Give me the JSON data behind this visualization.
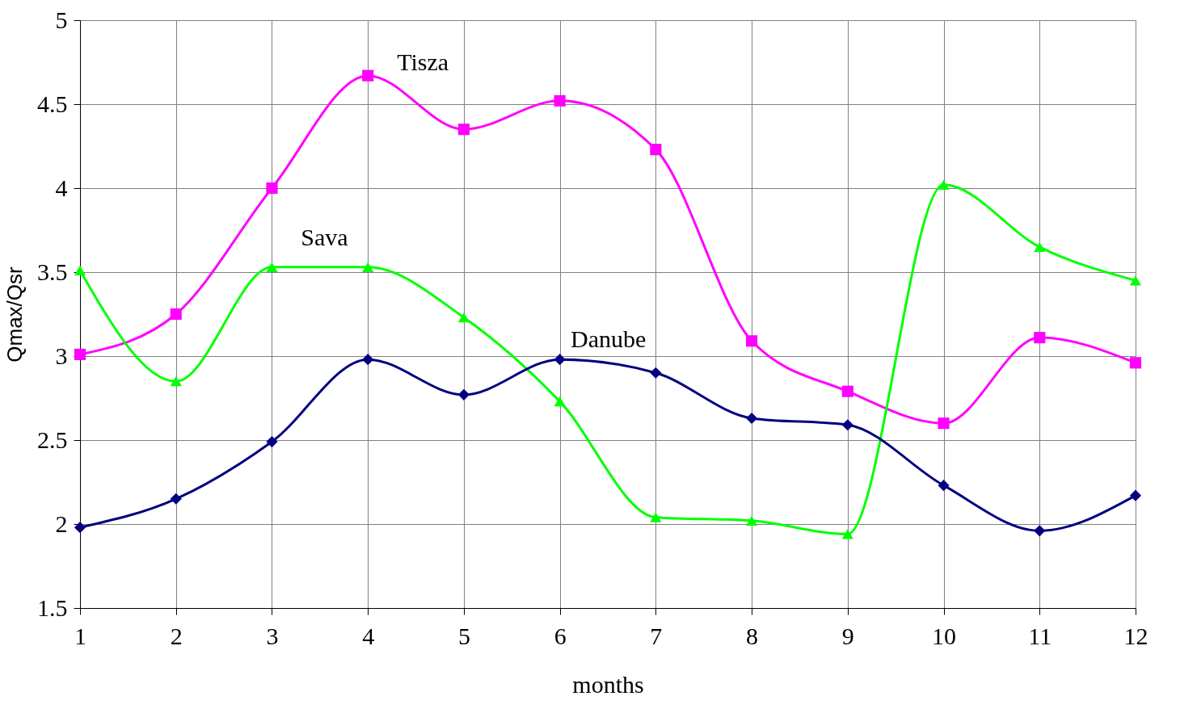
{
  "chart_data": {
    "type": "line",
    "xlabel": "months",
    "ylabel": "Qmax/Qsr",
    "x": [
      1,
      2,
      3,
      4,
      5,
      6,
      7,
      8,
      9,
      10,
      11,
      12
    ],
    "series": [
      {
        "name": "Tisza",
        "color": "#ff00ff",
        "marker": "square",
        "values": [
          3.01,
          3.25,
          4.0,
          4.67,
          4.35,
          4.52,
          4.23,
          3.09,
          2.79,
          2.6,
          3.11,
          2.96
        ]
      },
      {
        "name": "Sava",
        "color": "#00ff00",
        "marker": "triangle",
        "values": [
          3.51,
          2.85,
          3.53,
          3.53,
          3.23,
          2.73,
          2.04,
          2.02,
          1.94,
          4.02,
          3.65,
          3.45
        ]
      },
      {
        "name": "Danube",
        "color": "#000080",
        "marker": "diamond",
        "values": [
          1.98,
          2.15,
          2.49,
          2.98,
          2.77,
          2.98,
          2.9,
          2.63,
          2.59,
          2.23,
          1.96,
          2.17
        ]
      }
    ],
    "xlim": [
      1,
      12
    ],
    "xticks": [
      1,
      2,
      3,
      4,
      5,
      6,
      7,
      8,
      9,
      10,
      11,
      12
    ],
    "ylim": [
      1.5,
      5
    ],
    "yticks": [
      1.5,
      2,
      2.5,
      3,
      3.5,
      4,
      4.5,
      5
    ],
    "grid": true,
    "legend": false,
    "line_style": "solid"
  }
}
